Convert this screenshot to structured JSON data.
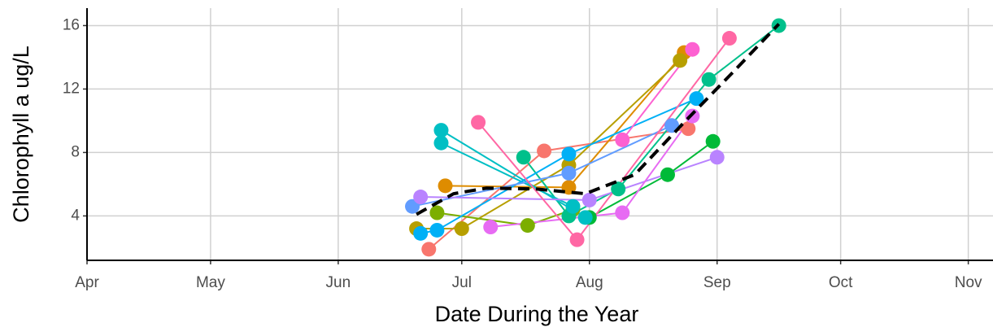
{
  "chart_data": {
    "type": "line",
    "x_label": "Date During the Year",
    "y_label": "Chlorophyll a ug/L",
    "xlim": [
      91,
      311
    ],
    "ylim": [
      1.2,
      17.1
    ],
    "xticks": [
      {
        "value": 91,
        "label": "Apr"
      },
      {
        "value": 121,
        "label": "May"
      },
      {
        "value": 152,
        "label": "Jun"
      },
      {
        "value": 182,
        "label": "Jul"
      },
      {
        "value": 213,
        "label": "Aug"
      },
      {
        "value": 244,
        "label": "Sep"
      },
      {
        "value": 274,
        "label": "Oct"
      },
      {
        "value": 305,
        "label": "Nov"
      }
    ],
    "yticks": [
      4,
      8,
      12,
      16
    ],
    "grid": true,
    "series": [
      {
        "color": "#F8766D",
        "x": [
          174,
          202,
          237
        ],
        "values": [
          1.9,
          8.1,
          9.5
        ]
      },
      {
        "color": "#DE8C00",
        "x": [
          178,
          208,
          236
        ],
        "values": [
          5.9,
          5.8,
          14.3
        ]
      },
      {
        "color": "#B79F00",
        "x": [
          171,
          182,
          208,
          235
        ],
        "values": [
          3.2,
          3.2,
          7.2,
          13.8
        ]
      },
      {
        "color": "#7CAE00",
        "x": [
          176,
          198,
          209
        ],
        "values": [
          4.2,
          3.4,
          4.4
        ]
      },
      {
        "color": "#00BA38",
        "x": [
          213,
          232,
          243
        ],
        "values": [
          3.9,
          6.6,
          8.7
        ]
      },
      {
        "color": "#00C08B",
        "x": [
          197,
          208,
          220,
          242,
          259
        ],
        "values": [
          7.7,
          4.0,
          5.7,
          12.6,
          16
        ]
      },
      {
        "color": "#00BFC4",
        "x": [
          177,
          212
        ],
        "values": [
          9.4,
          3.9
        ]
      },
      {
        "color": "#00BFC4",
        "x": [
          177,
          209
        ],
        "values": [
          8.6,
          4.6
        ]
      },
      {
        "color": "#00B0F6",
        "x": [
          172,
          176,
          208,
          239
        ],
        "values": [
          2.9,
          3.1,
          7.9,
          11.4
        ]
      },
      {
        "color": "#619CFF",
        "x": [
          170,
          208,
          233
        ],
        "values": [
          4.6,
          6.7,
          9.7
        ]
      },
      {
        "color": "#B983FF",
        "x": [
          172,
          213,
          244
        ],
        "values": [
          5.2,
          5.0,
          7.7
        ]
      },
      {
        "color": "#E76BF3",
        "x": [
          189,
          221,
          238
        ],
        "values": [
          3.3,
          4.2,
          10.3
        ]
      },
      {
        "color": "#FF67A4",
        "x": [
          186,
          210,
          247
        ],
        "values": [
          9.9,
          2.5,
          15.2
        ]
      },
      {
        "color": "#FD61D1",
        "x": [
          221,
          238
        ],
        "values": [
          8.8,
          14.5
        ]
      },
      {
        "color": "#000000",
        "dashed": true,
        "markers": false,
        "x": [
          171,
          180,
          188,
          200,
          212,
          224,
          236,
          248,
          259
        ],
        "values": [
          4.1,
          5.4,
          5.75,
          5.7,
          5.4,
          6.6,
          9.9,
          13.1,
          16.1
        ]
      }
    ]
  }
}
